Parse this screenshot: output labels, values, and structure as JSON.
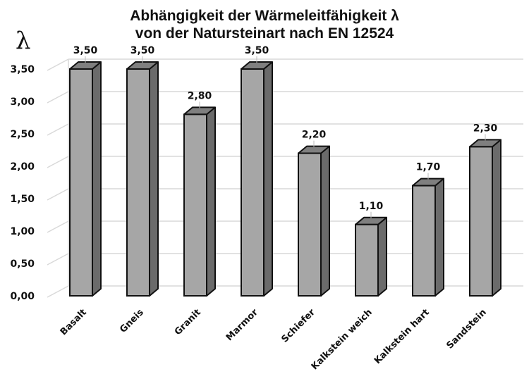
{
  "chart_data": {
    "type": "bar",
    "style": "3d-column",
    "title": "Abhängigkeit der Wärmeleitfähigkeit λ von der Natursteinart nach EN 12524",
    "title_lines": [
      "Abhängigkeit der Wärmeleitfähigkeit λ",
      "von der Natursteinart nach EN 12524"
    ],
    "ylabel": "λ",
    "xlabel": "",
    "categories": [
      "Basalt",
      "Gneis",
      "Granit",
      "Marmor",
      "Schiefer",
      "Kalkstein weich",
      "Kalkstein hart",
      "Sandstein"
    ],
    "values": [
      3.5,
      3.5,
      2.8,
      3.5,
      2.2,
      1.1,
      1.7,
      2.3
    ],
    "value_labels": [
      "3,50",
      "3,50",
      "2,80",
      "3,50",
      "2,20",
      "1,10",
      "1,70",
      "2,30"
    ],
    "yticks": [
      0.0,
      0.5,
      1.0,
      1.5,
      2.0,
      2.5,
      3.0,
      3.5
    ],
    "ytick_labels": [
      "0,00",
      "0,50",
      "1,00",
      "1,50",
      "2,00",
      "2,50",
      "3,00",
      "3,50"
    ],
    "ylim": [
      0,
      3.5
    ],
    "grid": true,
    "legend": false,
    "colors": {
      "bar_front": "#a6a6a6",
      "bar_top": "#7f7f7f",
      "bar_side": "#6b6b6b",
      "bar_outline": "#111111",
      "grid": "#d9d9d9"
    }
  }
}
